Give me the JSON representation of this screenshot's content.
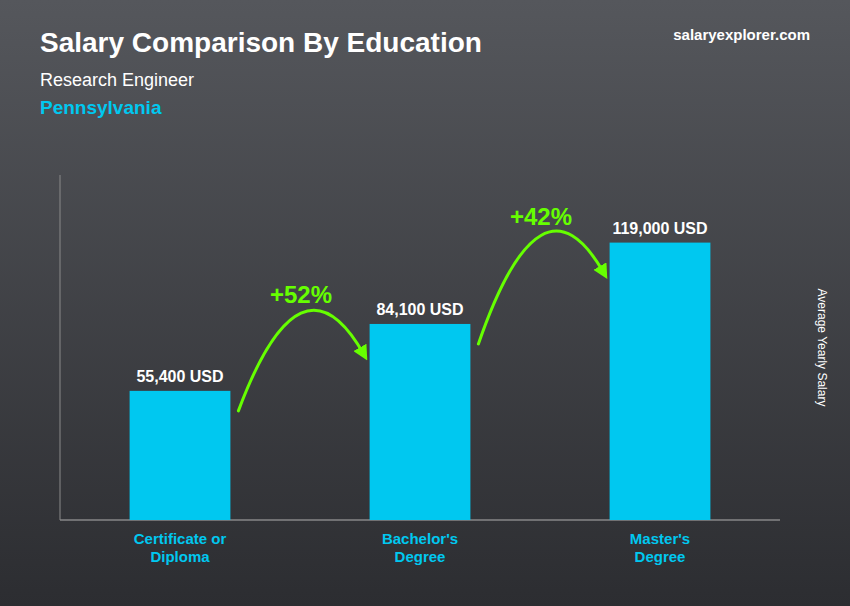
{
  "chart_data": {
    "type": "bar",
    "title": "Salary Comparison By Education",
    "subtitle": [
      "Research Engineer",
      "Pennsylvania"
    ],
    "source": "salaryexplorer.com",
    "ylabel": "Average Yearly Salary",
    "categories": [
      "Certificate or\nDiploma",
      "Bachelor's\nDegree",
      "Master's\nDegree"
    ],
    "values": [
      55400,
      84100,
      119000
    ],
    "value_labels": [
      "55,400 USD",
      "84,100 USD",
      "119,000 USD"
    ],
    "data_labels": true,
    "color": "#00c8f0",
    "ylim": [
      0,
      148000
    ],
    "tick_labels": "x",
    "grid": false,
    "annotations": [
      {
        "text": "+52%",
        "color": "#66ff00"
      },
      {
        "text": "+42%",
        "color": "#66ff00"
      }
    ]
  }
}
